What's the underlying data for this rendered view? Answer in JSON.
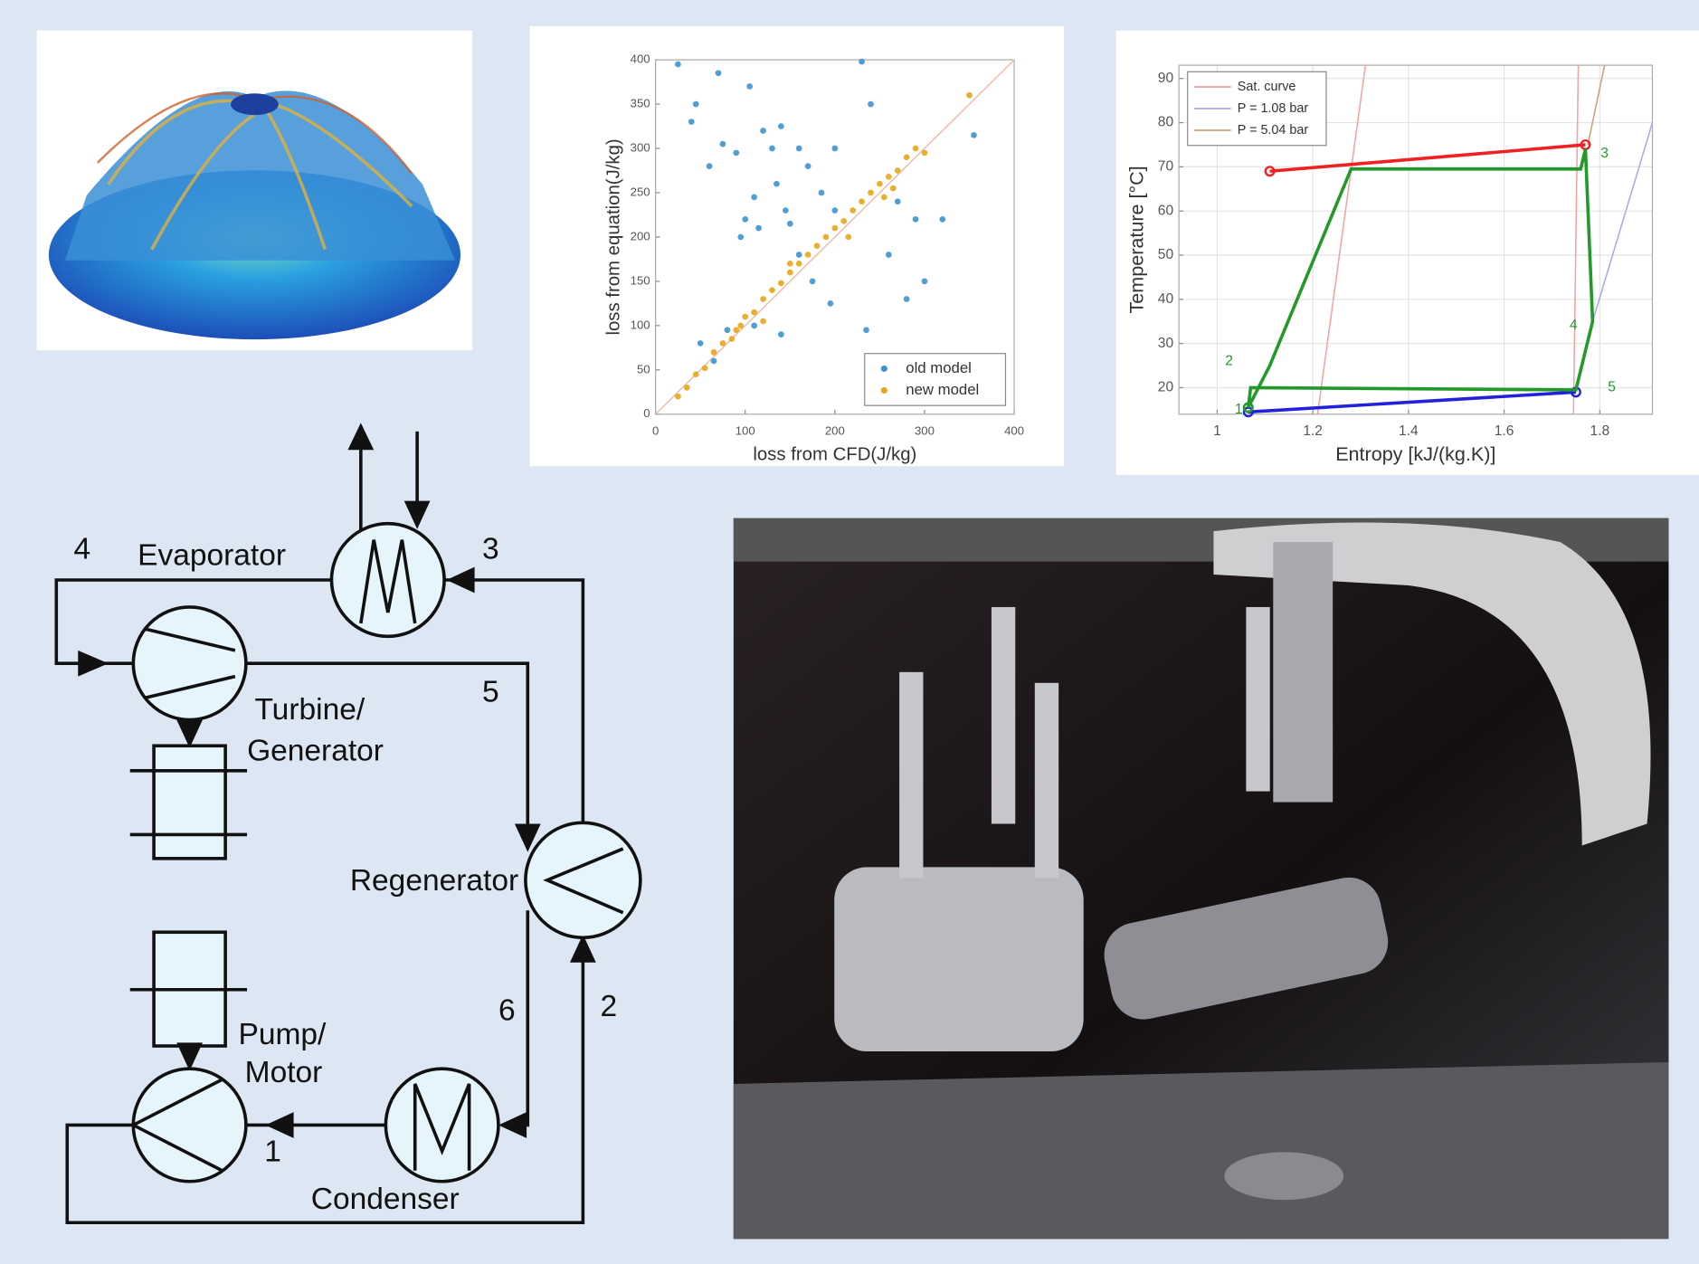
{
  "chart_data": [
    {
      "type": "scatter",
      "xlabel": "loss from CFD(J/kg)",
      "ylabel": "loss from equation(J/kg)",
      "xlim": [
        0,
        400
      ],
      "ylim": [
        0,
        400
      ],
      "xticks": [
        0,
        100,
        200,
        300,
        400
      ],
      "yticks": [
        0,
        50,
        100,
        150,
        200,
        250,
        300,
        350,
        400
      ],
      "grid": false,
      "legend": "lower right",
      "reference_line": true,
      "series": [
        {
          "name": "old model",
          "color": "#3d94d1",
          "x": [
            25,
            40,
            45,
            60,
            70,
            75,
            90,
            95,
            100,
            105,
            110,
            115,
            120,
            130,
            135,
            140,
            145,
            150,
            160,
            170,
            175,
            185,
            195,
            200,
            230,
            235,
            240,
            260,
            270,
            280,
            290,
            300,
            320,
            355,
            50,
            65,
            80,
            110,
            140,
            160,
            200
          ],
          "y": [
            395,
            330,
            350,
            280,
            385,
            305,
            295,
            200,
            220,
            370,
            245,
            210,
            320,
            300,
            260,
            325,
            230,
            215,
            300,
            280,
            150,
            250,
            125,
            230,
            398,
            95,
            350,
            180,
            240,
            130,
            220,
            150,
            220,
            315,
            80,
            60,
            95,
            100,
            90,
            180,
            300
          ]
        },
        {
          "name": "new model",
          "color": "#e8a619",
          "x": [
            25,
            35,
            45,
            55,
            65,
            75,
            85,
            95,
            100,
            110,
            120,
            130,
            140,
            150,
            160,
            170,
            180,
            190,
            200,
            210,
            220,
            230,
            240,
            250,
            260,
            270,
            280,
            290,
            300,
            255,
            265,
            350,
            120,
            90,
            150,
            215
          ],
          "y": [
            20,
            30,
            45,
            52,
            70,
            80,
            85,
            100,
            110,
            115,
            130,
            140,
            148,
            160,
            170,
            180,
            190,
            200,
            210,
            218,
            230,
            240,
            250,
            260,
            268,
            275,
            290,
            300,
            295,
            245,
            255,
            360,
            105,
            95,
            170,
            200
          ]
        }
      ]
    },
    {
      "type": "line",
      "xlabel": "Entropy [kJ/(kg.K)]",
      "ylabel": "Temperature [°C]",
      "xlim": [
        0.92,
        1.91
      ],
      "ylim": [
        14,
        93
      ],
      "xticks": [
        1,
        1.2,
        1.4,
        1.6,
        1.8
      ],
      "yticks": [
        20,
        30,
        40,
        50,
        60,
        70,
        80,
        90
      ],
      "grid": true,
      "legend": "upper left",
      "series": [
        {
          "name": "Sat. curve",
          "color": "#f4a3a3",
          "x": [
            1.21,
            1.31,
            null,
            1.745,
            1.755
          ],
          "y": [
            14,
            93,
            null,
            14,
            93
          ]
        },
        {
          "name": "P = 1.08 bar",
          "color": "#a9a9ee",
          "x": [
            1.785,
            1.91
          ],
          "y": [
            35,
            80
          ]
        },
        {
          "name": "P = 5.04 bar",
          "color": "#c9a27a",
          "x": [
            1.775,
            1.81
          ],
          "y": [
            75,
            93
          ]
        },
        {
          "color": "#ee2222",
          "marker": true,
          "x": [
            1.11,
            1.77
          ],
          "y": [
            69,
            75
          ]
        },
        {
          "color": "#2222dd",
          "marker": true,
          "x": [
            1.065,
            1.75
          ],
          "y": [
            14.5,
            19
          ]
        },
        {
          "color": "#22992a",
          "marker": true,
          "x": [
            1.065,
            1.11,
            1.28,
            1.76,
            1.77,
            1.785,
            1.75,
            1.07,
            1.065
          ],
          "y": [
            15.5,
            25,
            69.5,
            69.5,
            74,
            35,
            19.5,
            20,
            15.5
          ]
        }
      ],
      "annotations": [
        {
          "text": "1",
          "x": 1.045,
          "y": 15
        },
        {
          "text": "2",
          "x": 1.025,
          "y": 26
        },
        {
          "text": "3",
          "x": 1.81,
          "y": 73
        },
        {
          "text": "4",
          "x": 1.745,
          "y": 34
        },
        {
          "text": "5",
          "x": 1.825,
          "y": 20
        }
      ]
    }
  ],
  "diagram": {
    "labels": [
      "4",
      "Evaporator",
      "3",
      "Turbine/",
      "Generator",
      "5",
      "Regenerator",
      "6",
      "2",
      "Pump/",
      "Motor",
      "1",
      "Condenser"
    ]
  }
}
